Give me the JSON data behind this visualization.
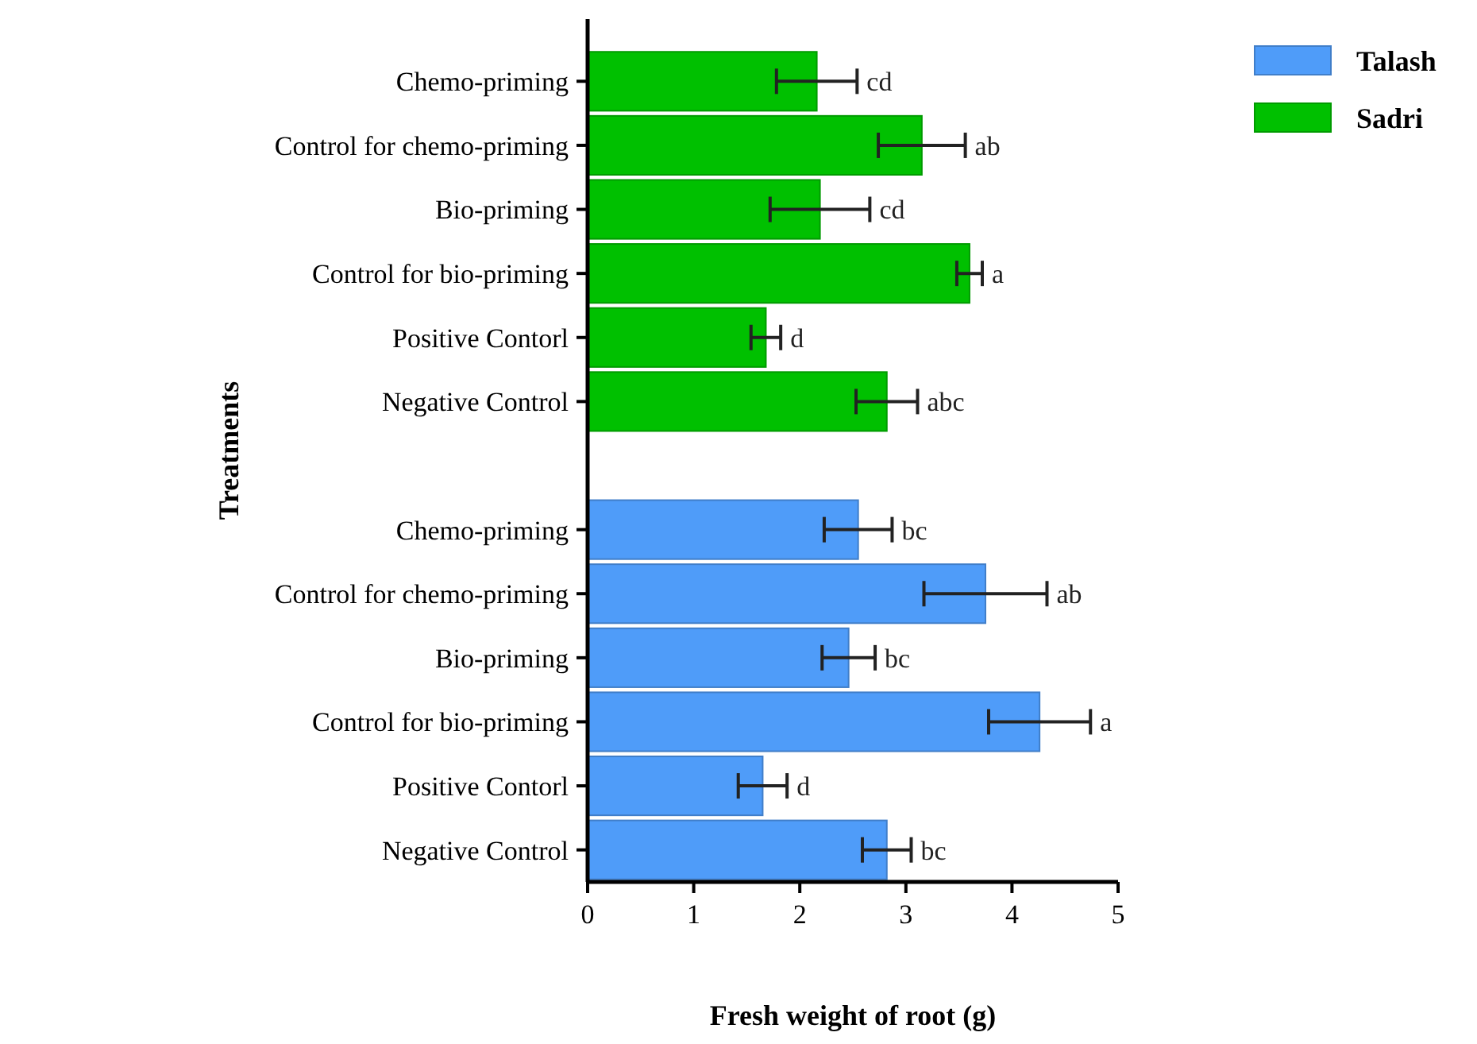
{
  "chart_data": {
    "type": "bar",
    "orientation": "horizontal",
    "xlabel": "Fresh weight of root (g)",
    "ylabel": "Treatments",
    "categories": [
      "Chemo-priming",
      "Control for chemo-priming",
      "Bio-priming",
      "Control for bio-priming",
      "Positive Contorl",
      "Negative Control",
      null,
      "Chemo-priming",
      "Control for chemo-priming",
      "Bio-priming",
      "Control for bio-priming",
      "Positive Contorl",
      "Negative Control"
    ],
    "series": [
      {
        "name": "Talash",
        "color": "#4f9cf9",
        "values": [
          null,
          null,
          null,
          null,
          null,
          null,
          null,
          2.55,
          3.75,
          2.46,
          4.26,
          1.65,
          2.82
        ],
        "errors": [
          null,
          null,
          null,
          null,
          null,
          null,
          null,
          0.32,
          0.58,
          0.25,
          0.48,
          0.23,
          0.23
        ],
        "value_labels": [
          null,
          null,
          null,
          null,
          null,
          null,
          null,
          "bc",
          "ab",
          "bc",
          "a",
          "d",
          "bc"
        ]
      },
      {
        "name": "Sadri",
        "color": "#00c000",
        "values": [
          2.16,
          3.15,
          2.19,
          3.6,
          1.68,
          2.82,
          null,
          null,
          null,
          null,
          null,
          null,
          null
        ],
        "errors": [
          0.38,
          0.41,
          0.47,
          0.12,
          0.14,
          0.29,
          null,
          null,
          null,
          null,
          null,
          null,
          null
        ],
        "value_labels": [
          "cd",
          "ab",
          "cd",
          "a",
          "d",
          "abc",
          null,
          null,
          null,
          null,
          null,
          null,
          null
        ]
      }
    ],
    "xlim": [
      0,
      5
    ],
    "xticks": [
      0,
      1,
      2,
      3,
      4,
      5
    ],
    "legend": "top right",
    "grid": false
  }
}
